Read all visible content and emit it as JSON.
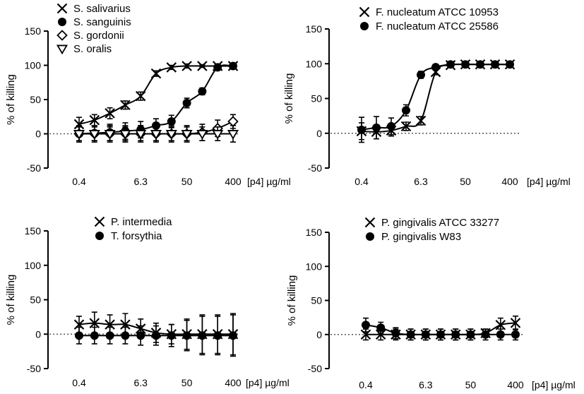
{
  "chart_data": [
    {
      "type": "scatter",
      "panel": "top-left",
      "ylabel": "% of killing",
      "xlabel": "[p4] µg/ml",
      "ylim": [
        -50,
        150
      ],
      "yticks": [
        -50,
        0,
        50,
        100,
        150
      ],
      "xticklabels": [
        "0.4",
        "6.3",
        "50",
        "400"
      ],
      "x_doses": [
        0.4,
        0.8,
        1.6,
        3.1,
        6.3,
        12.5,
        25,
        50,
        100,
        200,
        400
      ],
      "legend_position": "top-left",
      "series": [
        {
          "name": "S. salivarius",
          "marker": "x",
          "values": [
            14,
            20,
            30,
            42,
            55,
            88,
            97,
            99,
            99,
            99,
            99
          ],
          "errors": [
            10,
            8,
            8,
            6,
            6,
            4,
            3,
            3,
            2,
            2,
            2
          ]
        },
        {
          "name": "S. sanguinis",
          "marker": "circle",
          "values": [
            0,
            1,
            2,
            4,
            6,
            12,
            18,
            45,
            62,
            97,
            99
          ],
          "errors": [
            12,
            11,
            12,
            12,
            12,
            10,
            9,
            7,
            5,
            3,
            2
          ]
        },
        {
          "name": "S. gordonii",
          "marker": "diamond",
          "values": [
            0,
            0,
            0,
            0,
            0,
            0,
            0,
            0,
            2,
            8,
            18
          ],
          "errors": [
            12,
            12,
            12,
            12,
            12,
            12,
            12,
            12,
            12,
            12,
            10
          ]
        },
        {
          "name": "S. oralis",
          "marker": "triangle-down",
          "values": [
            0,
            0,
            0,
            0,
            0,
            0,
            0,
            0,
            0,
            0,
            0
          ],
          "errors": [
            10,
            10,
            10,
            10,
            10,
            10,
            10,
            10,
            10,
            10,
            12
          ]
        }
      ]
    },
    {
      "type": "scatter",
      "panel": "top-right",
      "ylabel": "% of killing",
      "xlabel": "[p4] µg/ml",
      "ylim": [
        -50,
        150
      ],
      "yticks": [
        -50,
        0,
        50,
        100,
        150
      ],
      "xticklabels": [
        "0.4",
        "6.3",
        "50",
        "400"
      ],
      "x_doses": [
        0.4,
        0.8,
        1.6,
        3.1,
        6.3,
        12.5,
        25,
        50,
        100,
        200,
        400
      ],
      "legend_position": "top",
      "series": [
        {
          "name": "F. nucleatum ATCC 10953",
          "marker": "x",
          "values": [
            3,
            2,
            4,
            10,
            18,
            88,
            98,
            99,
            99,
            99,
            99
          ],
          "errors": [
            12,
            10,
            8,
            6,
            6,
            4,
            3,
            3,
            2,
            2,
            2
          ]
        },
        {
          "name": "F. nucleatum ATCC 25586",
          "marker": "circle",
          "values": [
            5,
            8,
            10,
            33,
            84,
            95,
            99,
            99,
            99,
            99,
            99
          ],
          "errors": [
            18,
            16,
            12,
            8,
            5,
            4,
            3,
            3,
            2,
            2,
            2
          ]
        }
      ]
    },
    {
      "type": "scatter",
      "panel": "bottom-left",
      "ylabel": "% of killing",
      "xlabel": "[p4] µg/ml",
      "ylim": [
        -50,
        150
      ],
      "yticks": [
        -50,
        0,
        50,
        100,
        150
      ],
      "xticklabels": [
        "0.4",
        "6.3",
        "50",
        "400"
      ],
      "x_doses": [
        0.4,
        0.8,
        1.6,
        3.1,
        6.3,
        12.5,
        25,
        50,
        100,
        200,
        400
      ],
      "legend_position": "top",
      "series": [
        {
          "name": "P. intermedia",
          "marker": "x",
          "values": [
            14,
            16,
            14,
            14,
            8,
            2,
            0,
            0,
            0,
            0,
            0
          ],
          "errors": [
            12,
            16,
            14,
            16,
            14,
            14,
            14,
            22,
            28,
            28,
            30
          ]
        },
        {
          "name": "T. forsythia",
          "marker": "circle",
          "values": [
            -2,
            -2,
            -2,
            -2,
            -2,
            -2,
            -2,
            -2,
            -2,
            -2,
            -2
          ],
          "errors": [
            12,
            12,
            12,
            12,
            14,
            14,
            16,
            22,
            28,
            28,
            30
          ]
        }
      ]
    },
    {
      "type": "scatter",
      "panel": "bottom-right",
      "ylabel": "% of killing",
      "xlabel": "[p4] µg/ml",
      "ylim": [
        -50,
        150
      ],
      "yticks": [
        -50,
        0,
        50,
        100,
        150
      ],
      "xticklabels": [
        "0.4",
        "6.3",
        "50",
        "400"
      ],
      "x_doses": [
        0.4,
        0.8,
        1.6,
        3.1,
        6.3,
        12.5,
        25,
        50,
        100,
        200,
        400
      ],
      "legend_position": "top",
      "series": [
        {
          "name": "P. gingivalis ATCC 33277",
          "marker": "x",
          "values": [
            0,
            0,
            0,
            0,
            0,
            0,
            0,
            0,
            2,
            14,
            17
          ],
          "errors": [
            8,
            8,
            8,
            8,
            8,
            8,
            8,
            8,
            6,
            10,
            10
          ]
        },
        {
          "name": "P. gingivalis W83",
          "marker": "circle",
          "values": [
            14,
            10,
            2,
            0,
            0,
            0,
            0,
            0,
            0,
            0,
            0
          ],
          "errors": [
            10,
            8,
            8,
            8,
            8,
            8,
            8,
            8,
            8,
            8,
            8
          ]
        }
      ]
    }
  ]
}
